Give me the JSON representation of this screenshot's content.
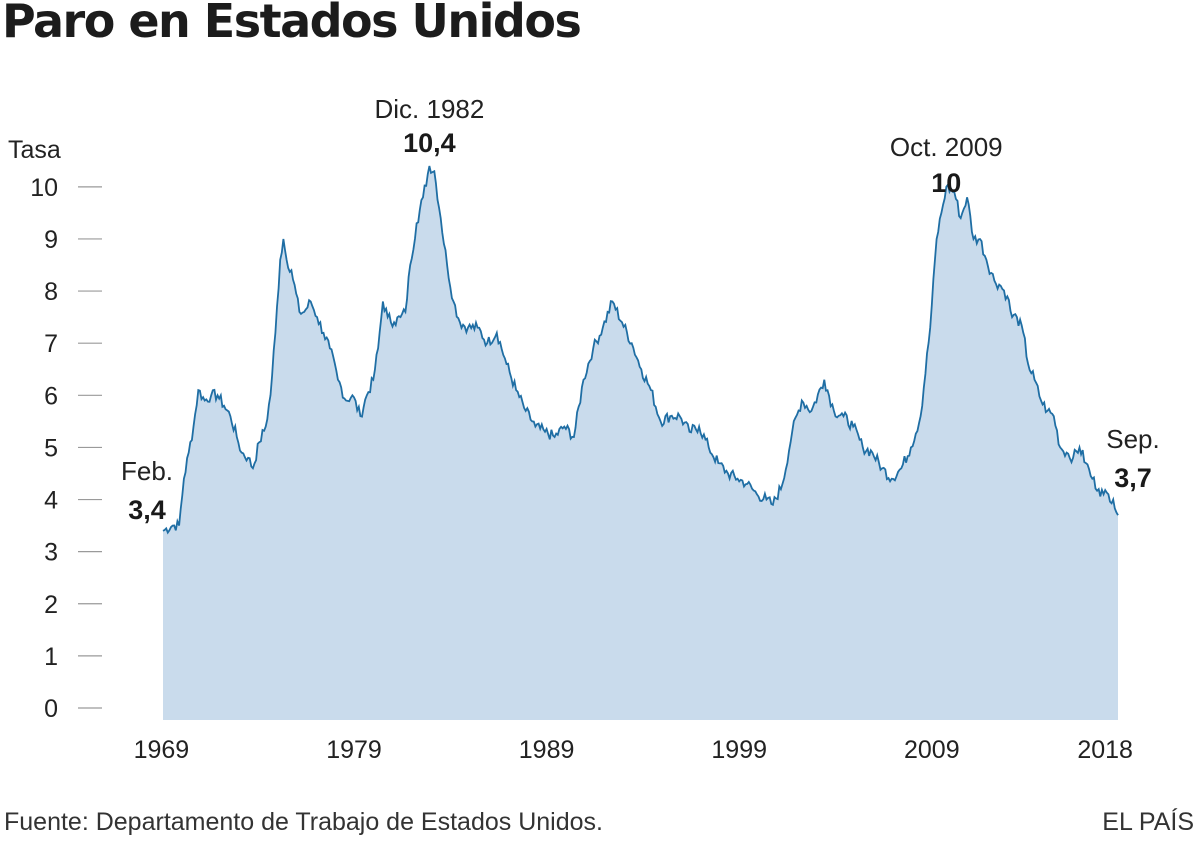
{
  "title": "Paro en Estados Unidos",
  "source": "Fuente: Departamento de Trabajo de Estados Unidos.",
  "brand": "EL PAÍS",
  "colors": {
    "fill": "#c9dbec",
    "line": "#1f6ea4",
    "tick": "#9a9a9a",
    "text": "#222222"
  },
  "chart_data": {
    "type": "area",
    "ylabel": "Tasa",
    "xlabel": "",
    "ylim": [
      0,
      10.5
    ],
    "xlim": [
      "1969-02",
      "2018-09"
    ],
    "yticks": [
      "0",
      "1",
      "2",
      "3",
      "4",
      "5",
      "6",
      "7",
      "8",
      "9",
      "10"
    ],
    "xticks": [
      "1969",
      "1979",
      "1989",
      "1999",
      "2009",
      "2018"
    ],
    "series": [
      {
        "points": [
          [
            "1969-02",
            3.4
          ],
          [
            "1969-08",
            3.5
          ],
          [
            "1969-12",
            3.5
          ],
          [
            "1970-03",
            4.4
          ],
          [
            "1970-06",
            4.9
          ],
          [
            "1970-09",
            5.4
          ],
          [
            "1970-12",
            6.1
          ],
          [
            "1971-04",
            5.9
          ],
          [
            "1971-08",
            6.0
          ],
          [
            "1971-12",
            6.0
          ],
          [
            "1972-04",
            5.8
          ],
          [
            "1972-08",
            5.6
          ],
          [
            "1972-12",
            5.2
          ],
          [
            "1973-03",
            4.9
          ],
          [
            "1973-07",
            4.8
          ],
          [
            "1973-10",
            4.6
          ],
          [
            "1974-02",
            5.1
          ],
          [
            "1974-06",
            5.4
          ],
          [
            "1974-09",
            6.0
          ],
          [
            "1974-12",
            7.2
          ],
          [
            "1975-03",
            8.6
          ],
          [
            "1975-05",
            9.0
          ],
          [
            "1975-07",
            8.6
          ],
          [
            "1975-10",
            8.4
          ],
          [
            "1976-03",
            7.6
          ],
          [
            "1976-06",
            7.6
          ],
          [
            "1976-10",
            7.8
          ],
          [
            "1977-02",
            7.5
          ],
          [
            "1977-06",
            7.2
          ],
          [
            "1977-10",
            6.9
          ],
          [
            "1978-03",
            6.3
          ],
          [
            "1978-08",
            5.9
          ],
          [
            "1978-12",
            6.0
          ],
          [
            "1979-05",
            5.6
          ],
          [
            "1979-09",
            6.0
          ],
          [
            "1980-01",
            6.3
          ],
          [
            "1980-04",
            6.9
          ],
          [
            "1980-07",
            7.8
          ],
          [
            "1980-10",
            7.5
          ],
          [
            "1981-02",
            7.4
          ],
          [
            "1981-06",
            7.5
          ],
          [
            "1981-09",
            7.6
          ],
          [
            "1981-12",
            8.5
          ],
          [
            "1982-04",
            9.3
          ],
          [
            "1982-08",
            9.8
          ],
          [
            "1982-12",
            10.4
          ],
          [
            "1983-03",
            10.3
          ],
          [
            "1983-07",
            9.4
          ],
          [
            "1983-11",
            8.5
          ],
          [
            "1984-03",
            7.8
          ],
          [
            "1984-07",
            7.4
          ],
          [
            "1984-12",
            7.3
          ],
          [
            "1985-06",
            7.3
          ],
          [
            "1985-12",
            7.0
          ],
          [
            "1986-06",
            7.2
          ],
          [
            "1986-12",
            6.6
          ],
          [
            "1987-06",
            6.1
          ],
          [
            "1987-12",
            5.7
          ],
          [
            "1988-06",
            5.4
          ],
          [
            "1988-12",
            5.3
          ],
          [
            "1989-06",
            5.2
          ],
          [
            "1989-12",
            5.4
          ],
          [
            "1990-06",
            5.2
          ],
          [
            "1990-12",
            6.3
          ],
          [
            "1991-06",
            6.9
          ],
          [
            "1991-12",
            7.3
          ],
          [
            "1992-06",
            7.8
          ],
          [
            "1992-12",
            7.4
          ],
          [
            "1993-06",
            7.0
          ],
          [
            "1993-12",
            6.5
          ],
          [
            "1994-06",
            6.1
          ],
          [
            "1994-12",
            5.5
          ],
          [
            "1995-06",
            5.6
          ],
          [
            "1995-12",
            5.6
          ],
          [
            "1996-06",
            5.3
          ],
          [
            "1996-12",
            5.4
          ],
          [
            "1997-06",
            5.0
          ],
          [
            "1997-12",
            4.7
          ],
          [
            "1998-06",
            4.5
          ],
          [
            "1998-12",
            4.4
          ],
          [
            "1999-06",
            4.3
          ],
          [
            "1999-12",
            4.1
          ],
          [
            "2000-06",
            4.0
          ],
          [
            "2000-10",
            3.9
          ],
          [
            "2001-04",
            4.3
          ],
          [
            "2001-10",
            5.3
          ],
          [
            "2002-04",
            5.9
          ],
          [
            "2002-10",
            5.7
          ],
          [
            "2003-06",
            6.3
          ],
          [
            "2003-12",
            5.7
          ],
          [
            "2004-06",
            5.6
          ],
          [
            "2004-12",
            5.4
          ],
          [
            "2005-06",
            5.0
          ],
          [
            "2005-12",
            4.9
          ],
          [
            "2006-06",
            4.6
          ],
          [
            "2006-12",
            4.4
          ],
          [
            "2007-06",
            4.6
          ],
          [
            "2007-12",
            5.0
          ],
          [
            "2008-06",
            5.6
          ],
          [
            "2008-12",
            7.3
          ],
          [
            "2009-04",
            9.0
          ],
          [
            "2009-07",
            9.5
          ],
          [
            "2009-10",
            10.0
          ],
          [
            "2010-03",
            9.9
          ],
          [
            "2010-07",
            9.4
          ],
          [
            "2010-11",
            9.8
          ],
          [
            "2011-03",
            9.0
          ],
          [
            "2011-07",
            9.0
          ],
          [
            "2011-11",
            8.6
          ],
          [
            "2012-04",
            8.2
          ],
          [
            "2012-08",
            8.1
          ],
          [
            "2012-12",
            7.9
          ],
          [
            "2013-03",
            7.5
          ],
          [
            "2013-06",
            7.5
          ],
          [
            "2013-10",
            7.2
          ],
          [
            "2014-01",
            6.6
          ],
          [
            "2014-05",
            6.3
          ],
          [
            "2014-09",
            5.9
          ],
          [
            "2015-01",
            5.7
          ],
          [
            "2015-05",
            5.6
          ],
          [
            "2015-09",
            5.0
          ],
          [
            "2016-01",
            4.9
          ],
          [
            "2016-05",
            4.8
          ],
          [
            "2016-09",
            5.0
          ],
          [
            "2017-01",
            4.7
          ],
          [
            "2017-05",
            4.4
          ],
          [
            "2017-09",
            4.2
          ],
          [
            "2017-12",
            4.1
          ],
          [
            "2018-03",
            4.1
          ],
          [
            "2018-06",
            4.0
          ],
          [
            "2018-09",
            3.7
          ]
        ]
      }
    ],
    "annotations": [
      {
        "at": "1969-02",
        "label": "Feb.",
        "value": "3,4"
      },
      {
        "at": "1982-12",
        "label": "Dic. 1982",
        "value": "10,4"
      },
      {
        "at": "2009-10",
        "label": "Oct. 2009",
        "value": "10"
      },
      {
        "at": "2018-09",
        "label": "Sep.",
        "value": "3,7"
      }
    ]
  }
}
